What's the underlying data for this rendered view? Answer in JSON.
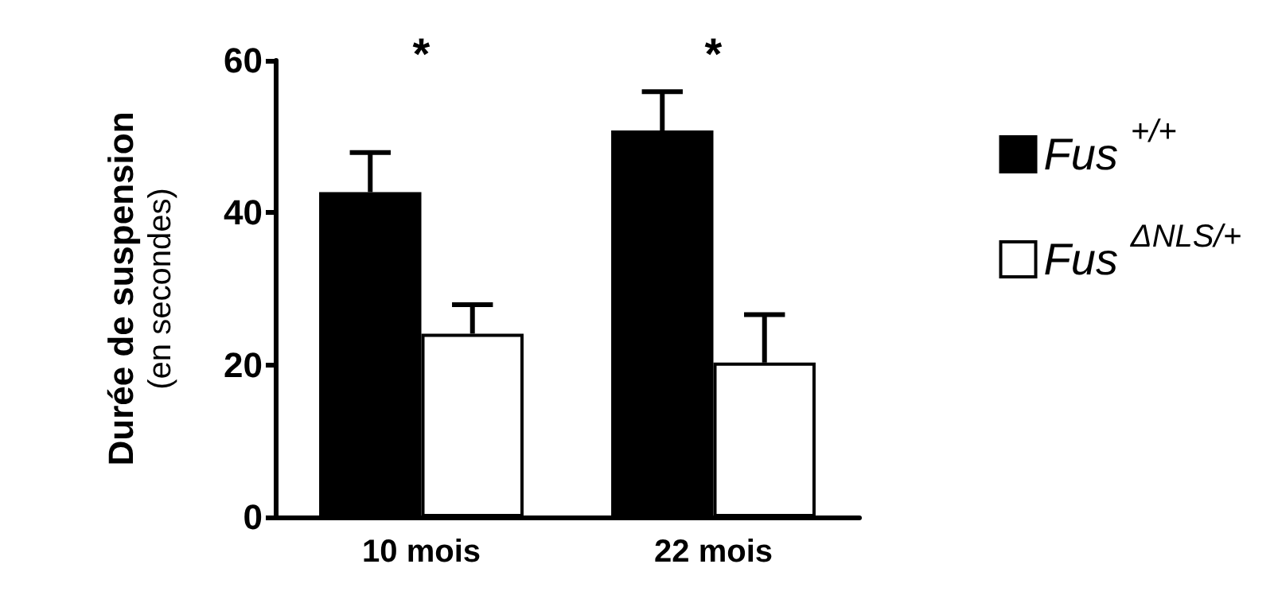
{
  "chart_data": {
    "type": "bar",
    "ylabel": "Durée de suspension\n(en secondes)",
    "categories": [
      "10 mois",
      "22 mois"
    ],
    "series": [
      {
        "name": "Fus$^{+/+}$",
        "color": "#000000",
        "values": [
          42.7,
          50.8
        ],
        "errors": [
          [
            42.7,
            47.9
          ],
          [
            50.8,
            55.9
          ]
        ]
      },
      {
        "name": "Fus$^{ΔNLS/+}$",
        "color": "#ffffff",
        "values": [
          24.1,
          20.3
        ],
        "errors": [
          [
            24.1,
            27.9
          ],
          [
            20.3,
            26.6
          ]
        ]
      }
    ],
    "ylim": [
      0,
      60
    ],
    "yticks": [
      0,
      20,
      40,
      60
    ],
    "grid": false,
    "legend": "right",
    "annotations": [
      "*",
      "*"
    ]
  }
}
